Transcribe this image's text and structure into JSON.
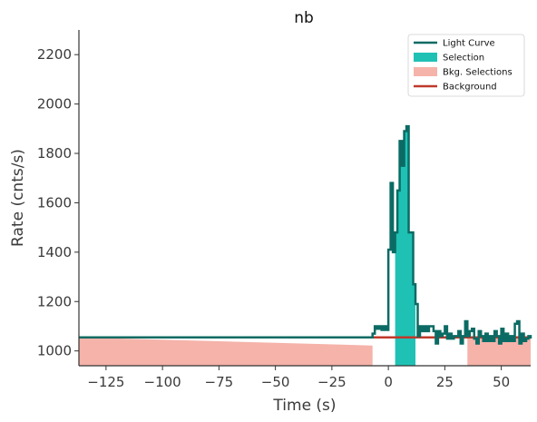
{
  "chart_data": {
    "type": "line",
    "title": "nb",
    "xlabel": "Time (s)",
    "ylabel": "Rate (cnts/s)",
    "xlim": [
      -137,
      63
    ],
    "ylim": [
      940,
      2300
    ],
    "xticks": [
      -125,
      -100,
      -75,
      -50,
      -25,
      0,
      25,
      50
    ],
    "xtick_labels": [
      "−125",
      "−100",
      "−75",
      "−50",
      "−25",
      "0",
      "25",
      "50"
    ],
    "yticks": [
      1000,
      1200,
      1400,
      1600,
      1800,
      2000,
      2200
    ],
    "ytick_labels": [
      "1000",
      "1200",
      "1400",
      "1600",
      "1800",
      "2000",
      "2200"
    ],
    "grid": false,
    "legend_position": "top-right",
    "colors": {
      "light_curve": "#0b6b64",
      "selection": "#20c1b5",
      "bkg_selection": "#f5b3aa",
      "background": "#c0392b"
    },
    "legend": [
      {
        "label": "Light Curve",
        "kind": "line",
        "color": "#0b6b64"
      },
      {
        "label": "Selection",
        "kind": "patch",
        "color": "#20c1b5"
      },
      {
        "label": "Bkg. Selections",
        "kind": "patch",
        "color": "#f5b3aa"
      },
      {
        "label": "Background",
        "kind": "line",
        "color": "#c0392b"
      }
    ],
    "background_level": {
      "name": "Background",
      "slope": 0,
      "intercept": 1055
    },
    "bkg_selections": [
      {
        "x_start": -137,
        "x_end": -7,
        "y_start": 1055,
        "y_end": 1022
      },
      {
        "x_start": 35,
        "x_end": 63,
        "y_start": 1055,
        "y_end": 1055
      }
    ],
    "selection": {
      "x_start": 3,
      "x_end": 12
    },
    "series": [
      {
        "name": "Light Curve",
        "drawstyle": "steps-post",
        "x": [
          -137,
          -7,
          -6,
          -5,
          -4,
          -3,
          -2,
          -1,
          0,
          1,
          2,
          3,
          4,
          5,
          6,
          7,
          8,
          9,
          10,
          11,
          12,
          13,
          14,
          15,
          16,
          17,
          18,
          19,
          20,
          21,
          22,
          23,
          24,
          25,
          26,
          27,
          28,
          29,
          30,
          31,
          32,
          33,
          34,
          35,
          36,
          37,
          38,
          39,
          40,
          41,
          42,
          43,
          44,
          45,
          46,
          47,
          48,
          49,
          50,
          51,
          52,
          53,
          54,
          55,
          56,
          57,
          58,
          59,
          60,
          61,
          62,
          63
        ],
        "y": [
          1055,
          1070,
          1100,
          1090,
          1100,
          1085,
          1100,
          1085,
          1410,
          1680,
          1400,
          1480,
          1650,
          1850,
          1750,
          1890,
          1910,
          1480,
          1480,
          1270,
          1190,
          1060,
          1100,
          1080,
          1100,
          1080,
          1100,
          1100,
          1080,
          1030,
          1080,
          1060,
          1070,
          1100,
          1050,
          1070,
          1050,
          1060,
          1060,
          1080,
          1030,
          1060,
          1120,
          1060,
          1080,
          1090,
          1050,
          1030,
          1080,
          1060,
          1040,
          1070,
          1040,
          1060,
          1040,
          1080,
          1060,
          1030,
          1090,
          1040,
          1070,
          1040,
          1060,
          1040,
          1110,
          1120,
          1030,
          1070,
          1040,
          1050,
          1060,
          1050
        ]
      }
    ]
  }
}
